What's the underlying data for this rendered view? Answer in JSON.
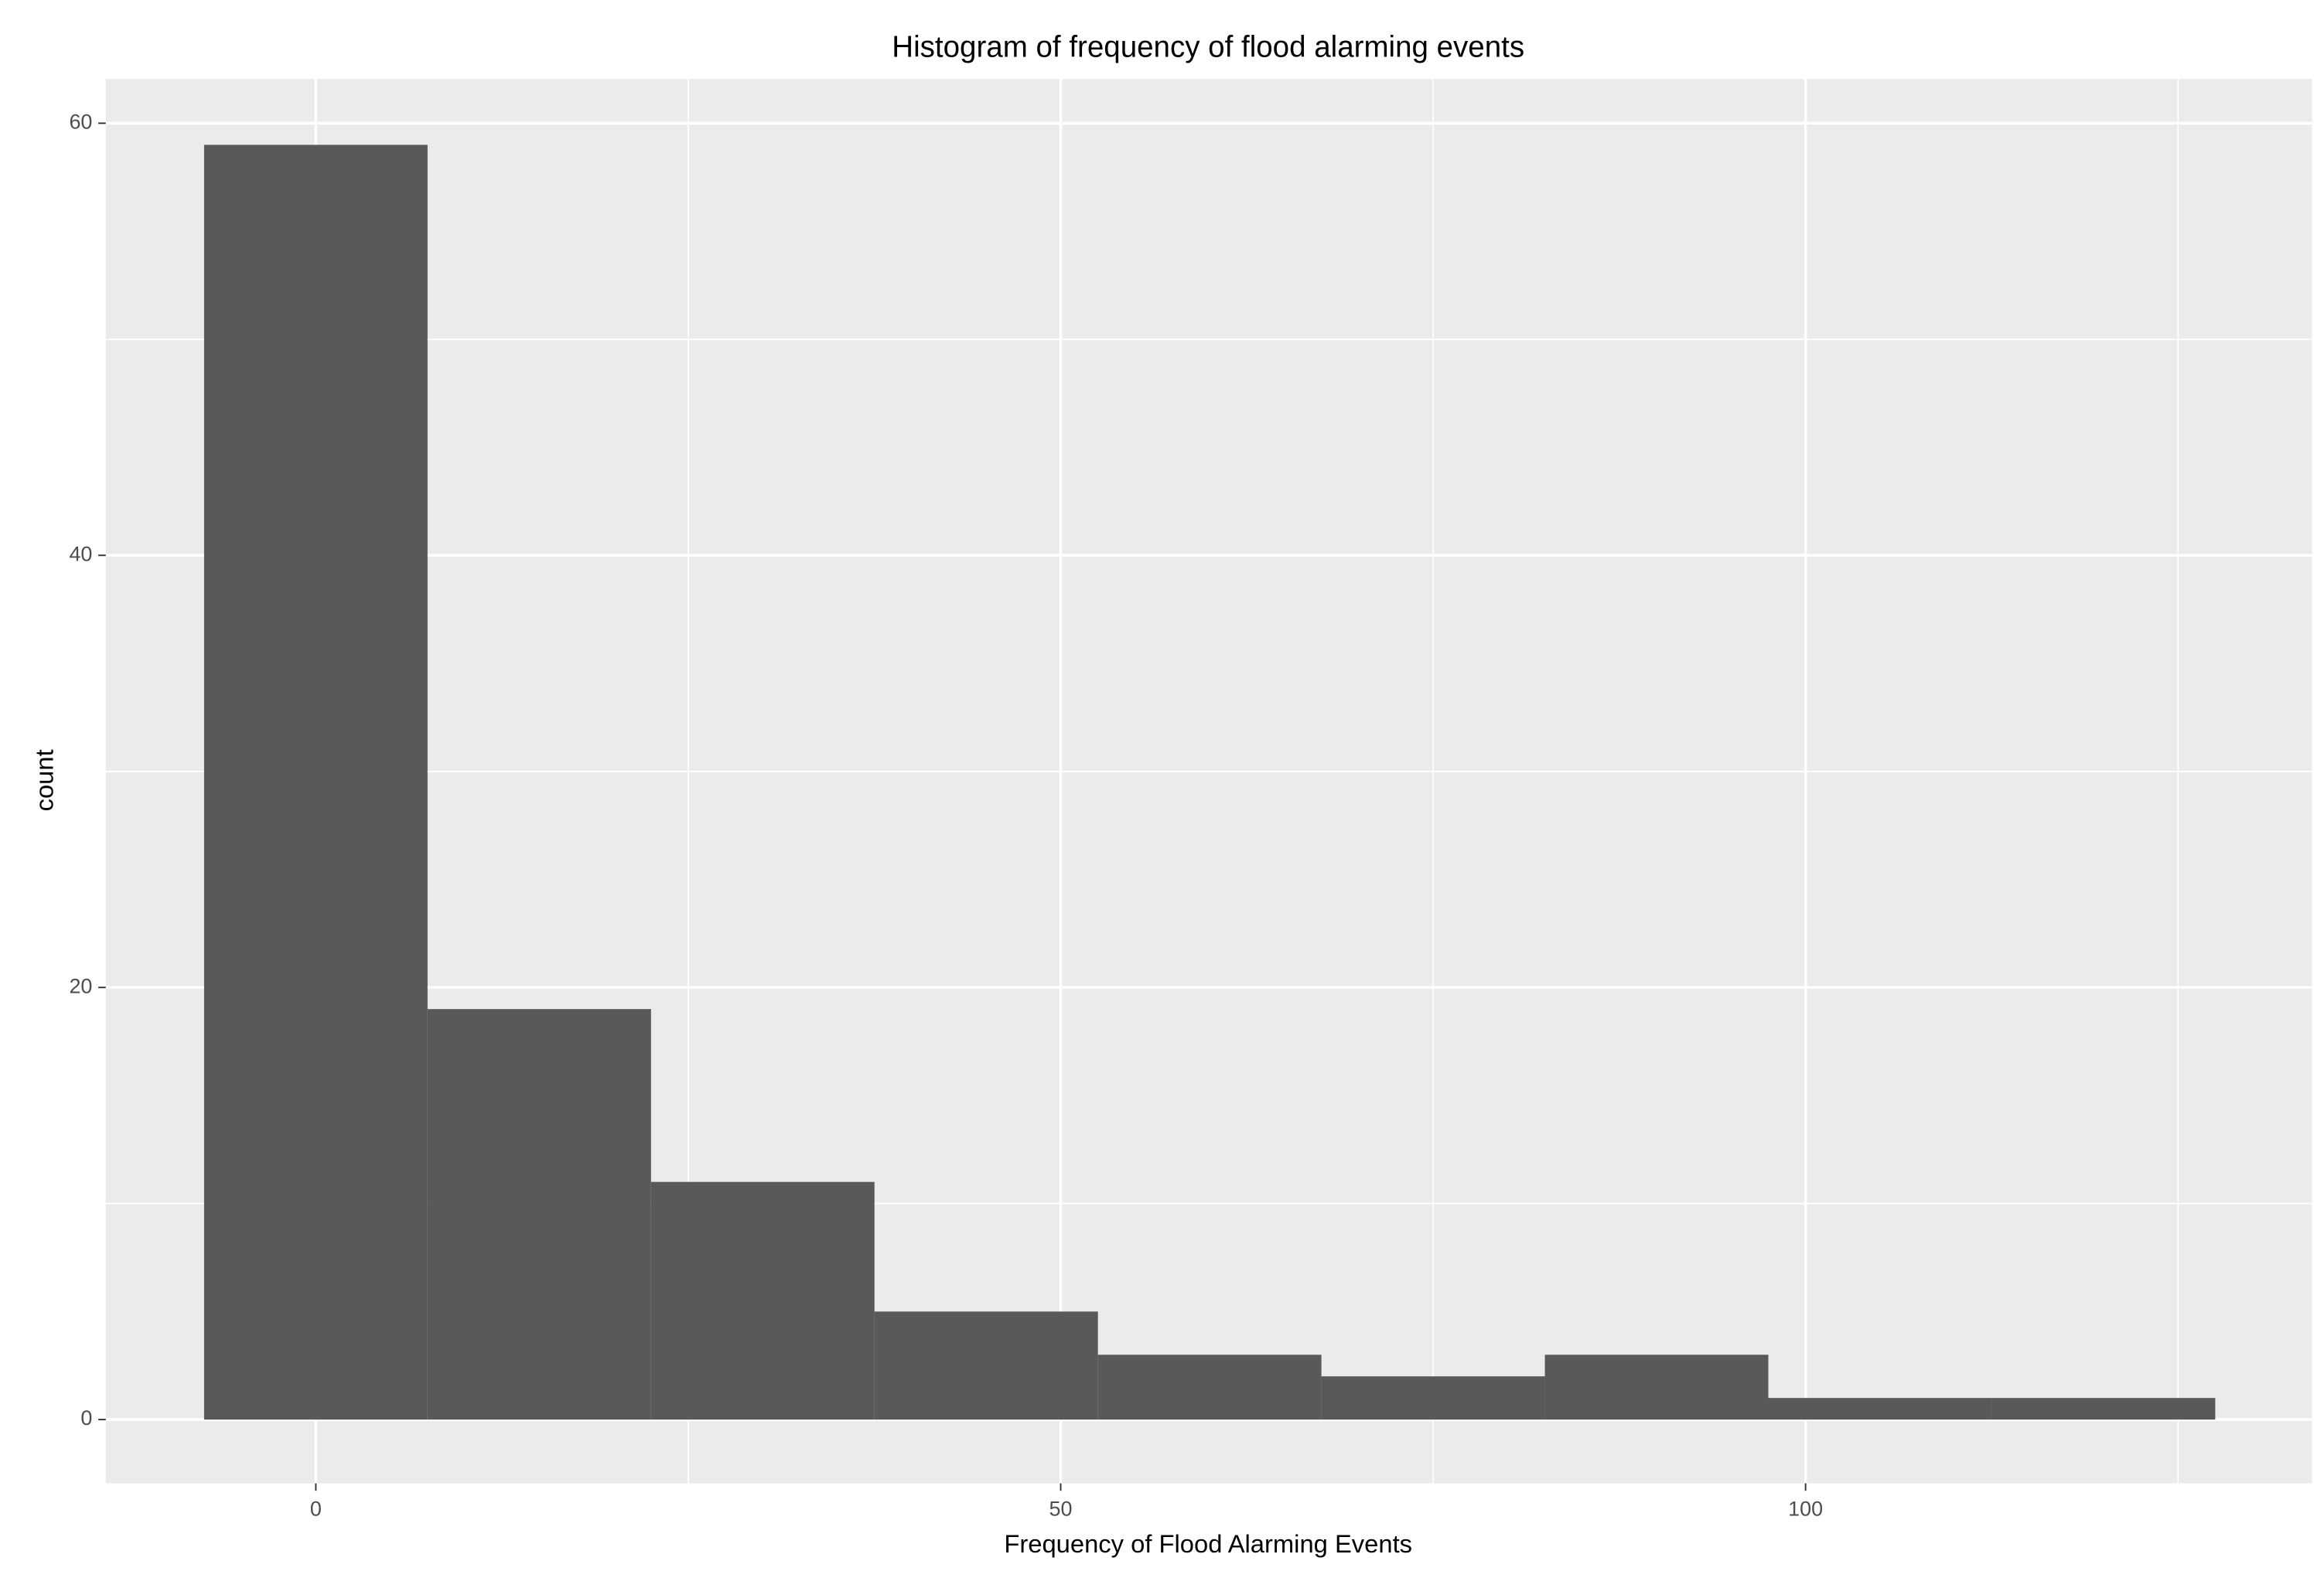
{
  "chart_data": {
    "type": "histogram",
    "title": "Histogram of frequency of flood alarming events",
    "x_label": "Frequency of Flood Alarming Events",
    "y_label": "count",
    "bins": [
      -7.5,
      7.5,
      22.5,
      37.5,
      52.5,
      67.5,
      82.5,
      97.5,
      112.5,
      127.5
    ],
    "values": [
      59,
      19,
      11,
      5,
      3,
      2,
      3,
      1,
      1
    ],
    "color": "#595959",
    "xlim": [
      -14.1,
      134
    ],
    "ylim": [
      -2.95,
      62.05
    ],
    "xticks": [
      0,
      50,
      100
    ],
    "yticks": [
      0,
      20,
      40,
      60
    ],
    "grid": true,
    "minor_grid": true
  }
}
